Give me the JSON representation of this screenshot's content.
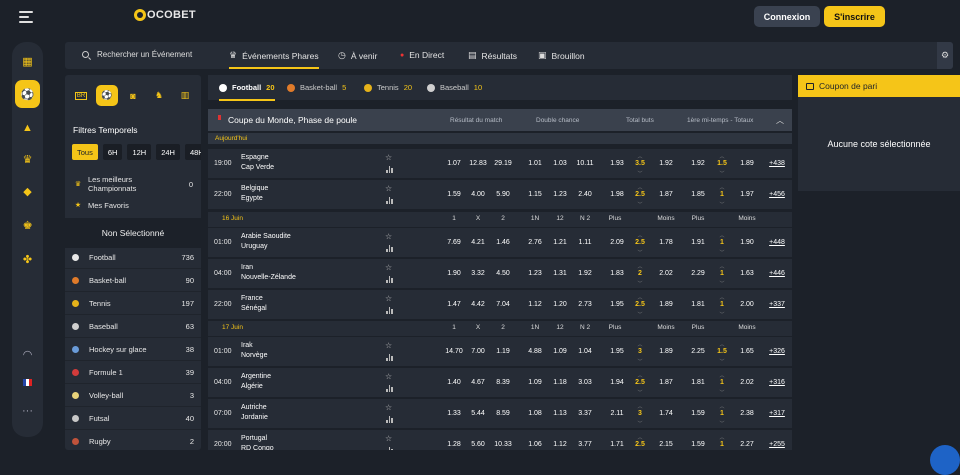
{
  "header": {
    "brand": "OCOBET",
    "login": "Connexion",
    "signup": "S'inscrire"
  },
  "nav": {
    "search_placeholder": "Rechercher un Événement",
    "tabs": [
      {
        "label": "Événements Phares",
        "icon": "trophy-icon"
      },
      {
        "label": "À venir",
        "icon": "clock-icon"
      },
      {
        "label": "En Direct",
        "icon": "live-dot-icon"
      },
      {
        "label": "Résultats",
        "icon": "results-icon"
      },
      {
        "label": "Brouillon",
        "icon": "draft-icon"
      }
    ]
  },
  "sidebar": {
    "filters_title": "Filtres Temporels",
    "chips": [
      "Tous",
      "6H",
      "12H",
      "24H",
      "48H"
    ],
    "best_champ": {
      "label1": "Les meilleurs",
      "label2": "Championnats",
      "count": "0"
    },
    "favorites": "Mes Favoris",
    "non_selected": "Non Sélectionné",
    "sports": [
      {
        "name": "Football",
        "count": "736",
        "color": "#e8e8e8"
      },
      {
        "name": "Basket-ball",
        "count": "90",
        "color": "#e07b2a"
      },
      {
        "name": "Tennis",
        "count": "197",
        "color": "#e5b21a"
      },
      {
        "name": "Baseball",
        "count": "63",
        "color": "#cfcfcf"
      },
      {
        "name": "Hockey sur glace",
        "count": "38",
        "color": "#6a9bd8"
      },
      {
        "name": "Formule 1",
        "count": "39",
        "color": "#d23b3b"
      },
      {
        "name": "Volley-ball",
        "count": "3",
        "color": "#e8d27a"
      },
      {
        "name": "Futsal",
        "count": "40",
        "color": "#c7c7c7"
      },
      {
        "name": "Rugby",
        "count": "2",
        "color": "#c0533b"
      }
    ]
  },
  "sport_tabs": [
    {
      "name": "Football",
      "count": "20",
      "color": "#ffffff"
    },
    {
      "name": "Basket-ball",
      "count": "5",
      "color": "#e07b2a"
    },
    {
      "name": "Tennis",
      "count": "20",
      "color": "#e5b21a"
    },
    {
      "name": "Baseball",
      "count": "10",
      "color": "#cfcfcf"
    }
  ],
  "competition": {
    "title": "Coupe du Monde, Phase de poule",
    "markets": [
      "Résultat du match",
      "Double chance",
      "Total buts",
      "1ère mi-temps - Totaux"
    ]
  },
  "col_labels": [
    "1",
    "X",
    "2",
    "1N",
    "12",
    "N 2",
    "Plus",
    "Moins",
    "Plus",
    "Moins"
  ],
  "dates": [
    "Aujourd'hui",
    "16 Juin",
    "17 Juin"
  ],
  "matches": [
    {
      "time": "19:00",
      "home": "Espagne",
      "away": "Cap Verde",
      "o": [
        "1.07",
        "12.83",
        "29.19",
        "1.01",
        "1.03",
        "10.11",
        "1.93",
        "3.5",
        "1.92",
        "1.92",
        "1.5",
        "1.89"
      ],
      "more": "+438"
    },
    {
      "time": "22:00",
      "home": "Belgique",
      "away": "Egypte",
      "o": [
        "1.59",
        "4.00",
        "5.90",
        "1.15",
        "1.23",
        "2.40",
        "1.98",
        "2.5",
        "1.87",
        "1.85",
        "1",
        "1.97"
      ],
      "more": "+456"
    },
    {
      "time": "01:00",
      "home": "Arabie Saoudite",
      "away": "Uruguay",
      "o": [
        "7.69",
        "4.21",
        "1.46",
        "2.76",
        "1.21",
        "1.11",
        "2.09",
        "2.5",
        "1.78",
        "1.91",
        "1",
        "1.90"
      ],
      "more": "+448"
    },
    {
      "time": "04:00",
      "home": "Iran",
      "away": "Nouvelle-Zélande",
      "o": [
        "1.90",
        "3.32",
        "4.50",
        "1.23",
        "1.31",
        "1.92",
        "1.83",
        "2",
        "2.02",
        "2.29",
        "1",
        "1.63"
      ],
      "more": "+446"
    },
    {
      "time": "22:00",
      "home": "France",
      "away": "Sénégal",
      "o": [
        "1.47",
        "4.42",
        "7.04",
        "1.12",
        "1.20",
        "2.73",
        "1.95",
        "2.5",
        "1.89",
        "1.81",
        "1",
        "2.00"
      ],
      "more": "+337"
    },
    {
      "time": "01:00",
      "home": "Irak",
      "away": "Norvège",
      "o": [
        "14.70",
        "7.00",
        "1.19",
        "4.88",
        "1.09",
        "1.04",
        "1.95",
        "3",
        "1.89",
        "2.25",
        "1.5",
        "1.65"
      ],
      "more": "+326"
    },
    {
      "time": "04:00",
      "home": "Argentine",
      "away": "Algérie",
      "o": [
        "1.40",
        "4.67",
        "8.39",
        "1.09",
        "1.18",
        "3.03",
        "1.94",
        "2.5",
        "1.87",
        "1.81",
        "1",
        "2.02"
      ],
      "more": "+316"
    },
    {
      "time": "07:00",
      "home": "Autriche",
      "away": "Jordanie",
      "o": [
        "1.33",
        "5.44",
        "8.59",
        "1.08",
        "1.13",
        "3.37",
        "2.11",
        "3",
        "1.74",
        "1.59",
        "1",
        "2.38"
      ],
      "more": "+317"
    },
    {
      "time": "20:00",
      "home": "Portugal",
      "away": "RD Congo",
      "o": [
        "1.28",
        "5.60",
        "10.33",
        "1.06",
        "1.12",
        "3.77",
        "1.71",
        "2.5",
        "2.15",
        "1.59",
        "1",
        "2.27"
      ],
      "more": "+255"
    }
  ],
  "coupon": {
    "title": "Coupon de pari",
    "empty": "Aucune cote sélectionnée"
  }
}
